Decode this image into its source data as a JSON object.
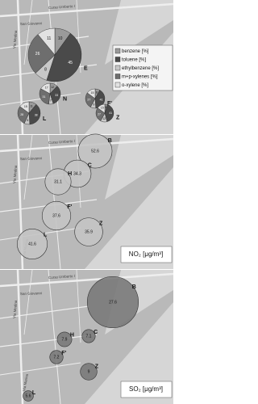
{
  "map_labels": [
    "Corso Umberto I",
    "Via Medina",
    "Via Marina",
    "San Giovanni"
  ],
  "panels": [
    {
      "type": "pie",
      "legend": [
        "benzene [%]",
        "toluene [%]",
        "ethylbenzene [%]",
        "m+p-xylenes [%]",
        "o-xylene [%]"
      ],
      "colors": [
        "#9a9a9a",
        "#4a4a4a",
        "#c8c8c8",
        "#6e6e6e",
        "#e2e2e2"
      ],
      "sites": [
        {
          "name": "E",
          "values": [
            10,
            45,
            8,
            26,
            11
          ]
        },
        {
          "name": "N",
          "values": [
            12,
            33,
            7,
            31,
            17
          ]
        },
        {
          "name": "L",
          "values": [
            11,
            38,
            8,
            28,
            15
          ]
        },
        {
          "name": "F'",
          "values": [
            8,
            41,
            9,
            27,
            15
          ]
        },
        {
          "name": "Z",
          "values": [
            5,
            41,
            12,
            27,
            15
          ]
        }
      ]
    },
    {
      "type": "bubble",
      "unit": "NO₂ [μg/m³]",
      "color": "#c4c4c4",
      "sites": [
        {
          "name": "B",
          "value": 52.6,
          "value_label": "52.6"
        },
        {
          "name": "C",
          "value": 34.3,
          "value_label": "34.3"
        },
        {
          "name": "H",
          "value": 31.1,
          "value_label": "31.1"
        },
        {
          "name": "F'",
          "value": 37.6,
          "value_label": "37.6"
        },
        {
          "name": "L",
          "value": 41.6,
          "value_label": "41.6"
        },
        {
          "name": "Z",
          "value": 35.9,
          "value_label": "35.9"
        }
      ]
    },
    {
      "type": "bubble",
      "unit": "SO₂ [μg/m³]",
      "color": "#7a7a7a",
      "sites": [
        {
          "name": "B",
          "value": 27.6,
          "value_label": "27.6"
        },
        {
          "name": "H",
          "value": 7.9,
          "value_label": "7.9"
        },
        {
          "name": "C",
          "value": 7.1,
          "value_label": "7.1"
        },
        {
          "name": "F'",
          "value": 7.2,
          "value_label": "7.2"
        },
        {
          "name": "Z",
          "value": 9,
          "value_label": "9"
        },
        {
          "name": "L",
          "value": 5.6,
          "value_label": "5.6"
        }
      ]
    }
  ]
}
